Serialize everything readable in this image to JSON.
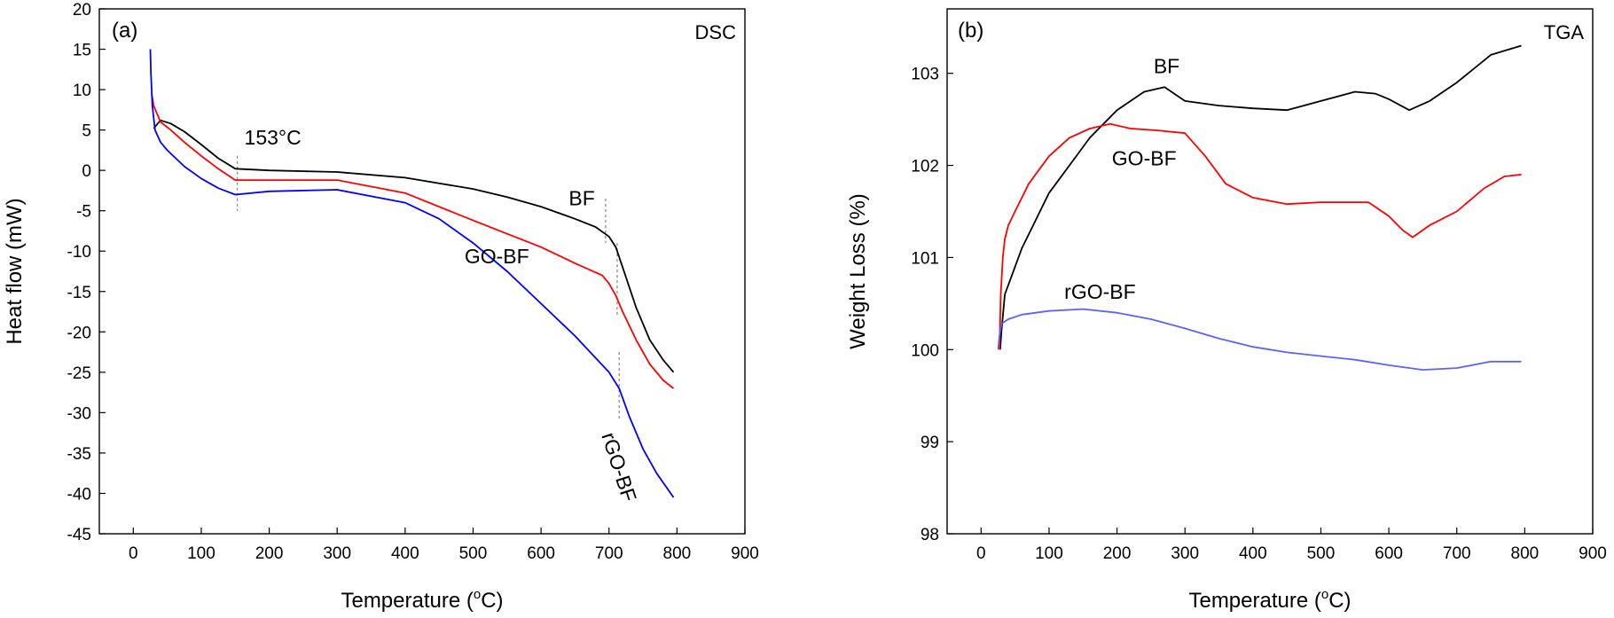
{
  "chart_data": [
    {
      "panel": "(a)",
      "type": "line",
      "corner_label": "DSC",
      "xlabel_prefix": "Temperature (",
      "xlabel_unit": "o",
      "xlabel_suffix": "C)",
      "ylabel": "Heat flow (mW)",
      "xlim": [
        -50,
        900
      ],
      "ylim": [
        -45,
        20
      ],
      "xticks": [
        0,
        100,
        200,
        300,
        400,
        500,
        600,
        700,
        800,
        900
      ],
      "yticks": [
        20,
        15,
        10,
        5,
        0,
        -5,
        -10,
        -15,
        -20,
        -25,
        -30,
        -35,
        -40,
        -45
      ],
      "annotation": {
        "text": "153°C",
        "x": 153
      },
      "markers": [
        {
          "x": 153,
          "y1": 1.8,
          "y2": -5
        },
        {
          "x": 695,
          "y1": -3.5,
          "y2": -9
        },
        {
          "x": 712,
          "y1": -9,
          "y2": -18
        },
        {
          "x": 715,
          "y1": -22.5,
          "y2": -31
        }
      ],
      "series": [
        {
          "name": "BF",
          "color": "#000000",
          "label_pos": [
            660,
            -4.3
          ],
          "x": [
            30,
            40,
            55,
            75,
            100,
            125,
            150,
            200,
            300,
            400,
            500,
            550,
            600,
            650,
            680,
            700,
            710,
            720,
            740,
            760,
            780,
            795
          ],
          "y": [
            5.2,
            6.2,
            5.8,
            4.8,
            3.2,
            1.5,
            0.2,
            0.0,
            -0.2,
            -0.9,
            -2.3,
            -3.3,
            -4.5,
            -6.0,
            -7.0,
            -8.2,
            -9.5,
            -12.0,
            -17.0,
            -21.0,
            -23.5,
            -25.0
          ]
        },
        {
          "name": "GO-BF",
          "color": "#ff0000",
          "label_pos": [
            535,
            -11.5
          ],
          "x": [
            27,
            30,
            40,
            55,
            75,
            100,
            125,
            150,
            200,
            300,
            400,
            500,
            600,
            650,
            690,
            700,
            710,
            720,
            740,
            760,
            780,
            795
          ],
          "y": [
            9.5,
            8.0,
            6.0,
            5.0,
            3.5,
            1.8,
            0.2,
            -1.2,
            -1.2,
            -1.2,
            -2.8,
            -6.2,
            -9.5,
            -11.5,
            -13.0,
            -14.0,
            -15.5,
            -17.5,
            -21.0,
            -24.0,
            -26.0,
            -27.0
          ]
        },
        {
          "name": "rGO-BF",
          "color": "#0000ff",
          "label_pos": [
            705,
            -37
          ],
          "label_rotation": 72,
          "x": [
            25,
            26,
            28,
            32,
            40,
            50,
            75,
            100,
            125,
            150,
            200,
            300,
            400,
            450,
            500,
            550,
            600,
            650,
            700,
            715,
            730,
            750,
            770,
            795
          ],
          "y": [
            15,
            12,
            8,
            5,
            3.5,
            2.5,
            0.5,
            -1.0,
            -2.2,
            -3.0,
            -2.6,
            -2.4,
            -4.0,
            -6.0,
            -9.0,
            -12.5,
            -16.5,
            -20.5,
            -25.0,
            -27.0,
            -30.5,
            -34.5,
            -37.5,
            -40.5
          ]
        }
      ]
    },
    {
      "panel": "(b)",
      "type": "line",
      "corner_label": "TGA",
      "xlabel_prefix": "Temperature (",
      "xlabel_unit": "o",
      "xlabel_suffix": "C)",
      "ylabel": "Weight Loss (%)",
      "xlim": [
        -50,
        900
      ],
      "ylim": [
        98,
        103.7
      ],
      "xticks": [
        0,
        100,
        200,
        300,
        400,
        500,
        600,
        700,
        800,
        900
      ],
      "yticks": [
        103,
        102,
        101,
        100,
        99,
        98
      ],
      "series": [
        {
          "name": "BF",
          "color": "#000000",
          "label_pos": [
            273,
            103.0
          ],
          "x": [
            28,
            30,
            35,
            45,
            60,
            80,
            100,
            130,
            160,
            200,
            240,
            270,
            300,
            350,
            400,
            450,
            500,
            550,
            580,
            600,
            630,
            660,
            700,
            750,
            795
          ],
          "y": [
            100.0,
            100.2,
            100.6,
            100.8,
            101.1,
            101.4,
            101.7,
            102.0,
            102.3,
            102.6,
            102.8,
            102.85,
            102.7,
            102.65,
            102.62,
            102.6,
            102.7,
            102.8,
            102.78,
            102.72,
            102.6,
            102.7,
            102.9,
            103.2,
            103.3
          ]
        },
        {
          "name": "GO-BF",
          "color": "#ff0000",
          "label_pos": [
            240,
            102.0
          ],
          "x": [
            27,
            29,
            32,
            35,
            40,
            50,
            70,
            100,
            130,
            160,
            190,
            220,
            260,
            300,
            330,
            360,
            400,
            450,
            500,
            550,
            570,
            600,
            620,
            635,
            660,
            700,
            740,
            770,
            795
          ],
          "y": [
            100.0,
            100.6,
            101.0,
            101.2,
            101.35,
            101.5,
            101.8,
            102.1,
            102.3,
            102.4,
            102.45,
            102.4,
            102.38,
            102.35,
            102.1,
            101.8,
            101.65,
            101.58,
            101.6,
            101.6,
            101.6,
            101.45,
            101.3,
            101.22,
            101.35,
            101.5,
            101.75,
            101.88,
            101.9
          ]
        },
        {
          "name": "rGO-BF",
          "color": "#5a63ff",
          "label_pos": [
            175,
            100.55
          ],
          "x": [
            25,
            27,
            30,
            40,
            60,
            100,
            150,
            200,
            250,
            300,
            350,
            400,
            450,
            500,
            550,
            600,
            650,
            700,
            750,
            795
          ],
          "y": [
            100.0,
            100.15,
            100.28,
            100.33,
            100.38,
            100.42,
            100.44,
            100.4,
            100.33,
            100.23,
            100.12,
            100.03,
            99.97,
            99.93,
            99.89,
            99.83,
            99.78,
            99.8,
            99.87,
            99.87
          ]
        }
      ]
    }
  ]
}
